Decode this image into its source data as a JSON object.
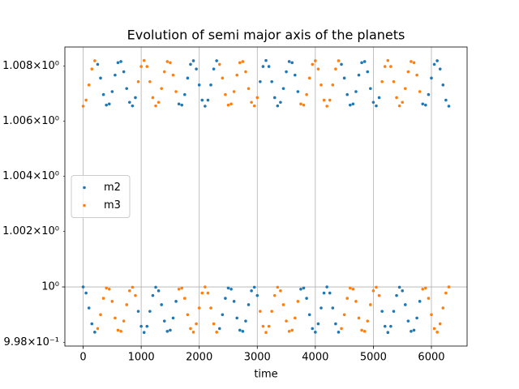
{
  "chart_data": {
    "type": "scatter",
    "title": "Evolution of semi major axis of the planets",
    "x_label": "time",
    "x": [
      0,
      50,
      100,
      150,
      200,
      250,
      300,
      350,
      400,
      450,
      500,
      550,
      600,
      650,
      700,
      750,
      800,
      850,
      900,
      950,
      1000,
      1050,
      1100,
      1150,
      1200,
      1250,
      1300,
      1350,
      1400,
      1450,
      1500,
      1550,
      1600,
      1650,
      1700,
      1750,
      1800,
      1850,
      1900,
      1950,
      2000,
      2050,
      2100,
      2150,
      2200,
      2250,
      2300,
      2350,
      2400,
      2450,
      2500,
      2550,
      2600,
      2650,
      2700,
      2750,
      2800,
      2850,
      2900,
      2950,
      3000,
      3050,
      3100,
      3150,
      3200,
      3250,
      3300,
      3350,
      3400,
      3450,
      3500,
      3550,
      3600,
      3650,
      3700,
      3750,
      3800,
      3850,
      3900,
      3950,
      4000,
      4050,
      4100,
      4150,
      4200,
      4250,
      4300,
      4350,
      4400,
      4450,
      4500,
      4550,
      4600,
      4650,
      4700,
      4750,
      4800,
      4850,
      4900,
      4950,
      5000,
      5050,
      5100,
      5150,
      5200,
      5250,
      5300,
      5350,
      5400,
      5450,
      5500,
      5550,
      5600,
      5650,
      5700,
      5750,
      5800,
      5850,
      5900,
      5950,
      6000,
      6050,
      6100,
      6150,
      6200,
      6250,
      6300
    ],
    "series": [
      {
        "name": "m2",
        "color": "#1f77b4",
        "values": [
          1.0,
          0.99978,
          0.99924,
          0.99867,
          0.99837,
          1.00806,
          1.00756,
          1.00696,
          1.00658,
          1.00662,
          1.00707,
          1.00767,
          1.00812,
          1.00816,
          1.00779,
          1.00718,
          1.00668,
          1.00655,
          1.00685,
          0.99912,
          0.99858,
          0.99836,
          0.99858,
          0.99912,
          0.99969,
          0.99999,
          0.99986,
          0.99936,
          0.99877,
          0.9984,
          0.99844,
          0.99888,
          0.99948,
          1.00662,
          1.00658,
          1.00696,
          1.00756,
          1.00806,
          1.00819,
          1.00789,
          1.00731,
          1.00676,
          1.00654,
          1.00676,
          1.00731,
          1.00789,
          1.00819,
          0.9985,
          0.999,
          0.99959,
          0.99996,
          0.99992,
          0.99948,
          0.99888,
          0.99844,
          0.9984,
          0.99877,
          0.99936,
          0.99986,
          0.99999,
          0.99969,
          1.00743,
          1.00798,
          1.0082,
          1.00798,
          1.00743,
          1.00685,
          1.00655,
          1.00668,
          1.00718,
          1.00779,
          1.00816,
          1.00812,
          1.00767,
          1.00707,
          0.99992,
          0.99996,
          0.99959,
          0.999,
          0.9985,
          0.99837,
          0.99867,
          0.99924,
          0.99978,
          1.0,
          0.99978,
          0.99924,
          0.99867,
          0.99837,
          1.00806,
          1.00756,
          1.00696,
          1.00658,
          1.00662,
          1.00707,
          1.00767,
          1.00812,
          1.00816,
          1.00779,
          1.00718,
          1.00668,
          1.00655,
          1.00685,
          0.99912,
          0.99858,
          0.99836,
          0.99858,
          0.99912,
          0.99969,
          0.99999,
          0.99986,
          0.99936,
          0.99877,
          0.9984,
          0.99844,
          0.99888,
          0.99948,
          1.00662,
          1.00658,
          1.00696,
          1.00756,
          1.00806,
          1.00819,
          1.00789,
          1.00731,
          1.00676,
          1.00654
        ]
      },
      {
        "name": "m3",
        "color": "#ff7f0e",
        "values": [
          1.00654,
          1.00676,
          1.00731,
          1.00789,
          1.00819,
          0.9985,
          0.999,
          0.99959,
          0.99996,
          0.99992,
          0.99948,
          0.99888,
          0.99844,
          0.9984,
          0.99877,
          0.99936,
          0.99986,
          0.99999,
          0.99969,
          1.00743,
          1.00798,
          1.0082,
          1.00798,
          1.00743,
          1.00685,
          1.00655,
          1.00668,
          1.00718,
          1.00779,
          1.00816,
          1.00812,
          1.00767,
          1.00707,
          0.99992,
          0.99996,
          0.99959,
          0.999,
          0.9985,
          0.99837,
          0.99867,
          0.99924,
          0.99978,
          1.0,
          0.99978,
          0.99924,
          0.99867,
          0.99837,
          1.00806,
          1.00756,
          1.00696,
          1.00658,
          1.00662,
          1.00707,
          1.00767,
          1.00812,
          1.00816,
          1.00779,
          1.00718,
          1.00668,
          1.00655,
          1.00685,
          0.99912,
          0.99858,
          0.99836,
          0.99858,
          0.99912,
          0.99969,
          0.99999,
          0.99986,
          0.99936,
          0.99877,
          0.9984,
          0.99844,
          0.99888,
          0.99948,
          1.00662,
          1.00658,
          1.00696,
          1.00756,
          1.00806,
          1.00819,
          1.00789,
          1.00731,
          1.00676,
          1.00654,
          1.00676,
          1.00731,
          1.00789,
          1.00819,
          0.9985,
          0.999,
          0.99959,
          0.99996,
          0.99992,
          0.99948,
          0.99888,
          0.99844,
          0.9984,
          0.99877,
          0.99936,
          0.99986,
          0.99999,
          0.99969,
          1.00743,
          1.00798,
          1.0082,
          1.00798,
          1.00743,
          1.00685,
          1.00655,
          1.00668,
          1.00718,
          1.00779,
          1.00816,
          1.00812,
          1.00767,
          1.00707,
          0.99992,
          0.99996,
          0.99959,
          0.999,
          0.9985,
          0.99837,
          0.99867,
          0.99924,
          0.99978,
          1.0
        ]
      }
    ],
    "xlim": [
      -315,
      6615
    ],
    "xticks": [
      0,
      1000,
      2000,
      3000,
      4000,
      5000,
      6000
    ],
    "ylim": [
      0.99787,
      1.00869
    ],
    "yscale": "log",
    "yticks": [
      {
        "value": 1,
        "label": "10⁰"
      }
    ],
    "yminorticks": [
      {
        "value": 0.998,
        "label": "9.98×10⁻¹"
      },
      {
        "value": 1.002,
        "label": "1.002×10⁰"
      },
      {
        "value": 1.004,
        "label": "1.004×10⁰"
      },
      {
        "value": 1.006,
        "label": "1.006×10⁰"
      },
      {
        "value": 1.008,
        "label": "1.008×10⁰"
      }
    ],
    "grid": true,
    "legend": "center left"
  }
}
